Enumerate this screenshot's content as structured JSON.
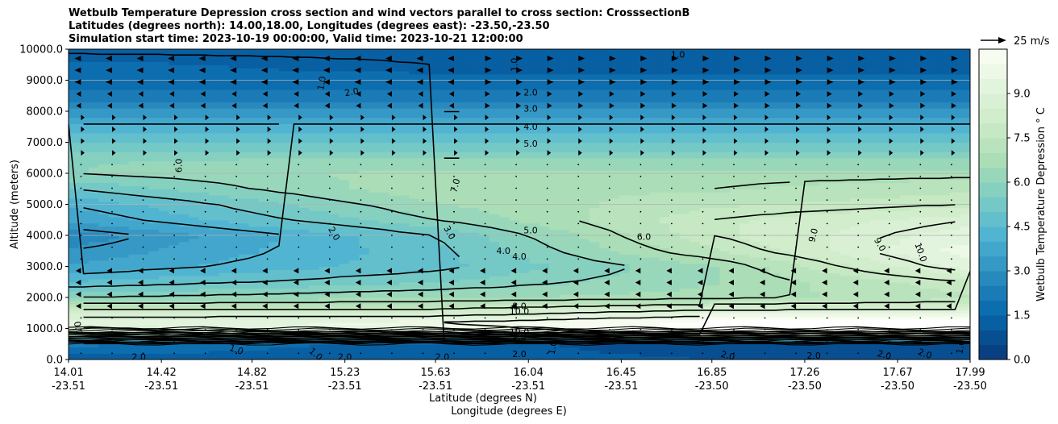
{
  "title_lines": [
    "Wetbulb Temperature Depression cross section and wind vectors parallel to cross section: CrosssectionB",
    "Latitudes (degrees north): 14.00,18.00, Longitudes (degrees east): -23.50,-23.50",
    "Simulation start time: 2023-10-19 00:00:00, Valid time: 2023-10-21 12:00:00"
  ],
  "chart_data": {
    "type": "heatmap",
    "subtype": "filled contour cross section with contour lines and wind vectors",
    "ylabel": "Altitude (meters)",
    "xlabel_line1": "Latitude (degrees N)",
    "xlabel_line2": "Longitude (degrees E)",
    "ylim": [
      0,
      10000
    ],
    "xlim": [
      14.01,
      17.99
    ],
    "y_ticks": [
      "0.0",
      "1000.0",
      "2000.0",
      "3000.0",
      "4000.0",
      "5000.0",
      "6000.0",
      "7000.0",
      "8000.0",
      "9000.0",
      "10000.0"
    ],
    "x_ticks": [
      {
        "lat": "14.01",
        "lon": "-23.51"
      },
      {
        "lat": "14.42",
        "lon": "-23.51"
      },
      {
        "lat": "14.82",
        "lon": "-23.51"
      },
      {
        "lat": "15.23",
        "lon": "-23.51"
      },
      {
        "lat": "15.63",
        "lon": "-23.51"
      },
      {
        "lat": "16.04",
        "lon": "-23.51"
      },
      {
        "lat": "16.45",
        "lon": "-23.51"
      },
      {
        "lat": "16.85",
        "lon": "-23.50"
      },
      {
        "lat": "17.26",
        "lon": "-23.50"
      },
      {
        "lat": "17.67",
        "lon": "-23.50"
      },
      {
        "lat": "17.99",
        "lon": "-23.50"
      }
    ],
    "horizontal_grid": [
      4000,
      5000,
      6000,
      9000
    ],
    "colorbar": {
      "label": "Wetbulb Temperature Depression ° C",
      "range": [
        0,
        10.5
      ],
      "ticks": [
        "0.0",
        "1.5",
        "3.0",
        "4.5",
        "6.0",
        "7.5",
        "9.0"
      ],
      "colormap": "GnBu_r"
    },
    "quiver_key": {
      "label": "25 m/s",
      "speed": 25
    },
    "field_profile": {
      "levels_m": [
        0,
        500,
        900,
        1200,
        1500,
        2000,
        2500,
        3000,
        3500,
        4000,
        4500,
        5000,
        5500,
        6000,
        6500,
        7000,
        7500,
        8000,
        8500,
        9000,
        9500,
        10000
      ],
      "lat_points": [
        14.01,
        15.63,
        16.85,
        17.99
      ],
      "depression_c": [
        [
          1.0,
          1.0,
          0.8,
          0.8
        ],
        [
          2.0,
          1.0,
          0.5,
          0.5
        ],
        [
          8.5,
          9.5,
          10.5,
          10.5
        ],
        [
          9.5,
          10.0,
          11.0,
          11.0
        ],
        [
          8.5,
          8.5,
          9.5,
          9.5
        ],
        [
          6.0,
          6.5,
          6.8,
          7.5
        ],
        [
          4.5,
          5.5,
          6.5,
          8.0
        ],
        [
          3.5,
          4.8,
          6.5,
          9.5
        ],
        [
          3.0,
          4.8,
          7.5,
          10.0
        ],
        [
          2.5,
          5.0,
          8.0,
          9.5
        ],
        [
          3.5,
          6.0,
          8.0,
          9.0
        ],
        [
          4.0,
          6.5,
          7.5,
          8.0
        ],
        [
          5.0,
          7.0,
          7.0,
          7.5
        ],
        [
          6.0,
          6.8,
          6.8,
          6.8
        ],
        [
          6.0,
          6.0,
          6.0,
          6.0
        ],
        [
          5.0,
          5.0,
          5.0,
          5.0
        ],
        [
          4.2,
          4.2,
          4.2,
          4.2
        ],
        [
          3.0,
          3.0,
          3.0,
          3.0
        ],
        [
          2.0,
          2.0,
          2.0,
          2.0
        ],
        [
          1.5,
          1.6,
          1.6,
          1.6
        ],
        [
          1.5,
          1.0,
          1.0,
          1.0
        ],
        [
          0.8,
          0.8,
          0.8,
          0.8
        ]
      ]
    },
    "contour_labels": [
      {
        "text": "1.0",
        "lat": 15.98,
        "alt": 9500,
        "angle": -90
      },
      {
        "text": "1.0",
        "lat": 16.7,
        "alt": 9800,
        "angle": 0
      },
      {
        "text": "1.0",
        "lat": 15.13,
        "alt": 8900,
        "angle": -80
      },
      {
        "text": "2.0",
        "lat": 15.26,
        "alt": 8600,
        "angle": -10
      },
      {
        "text": "2.0",
        "lat": 16.05,
        "alt": 8580,
        "angle": 0
      },
      {
        "text": "3.0",
        "lat": 16.05,
        "alt": 8060,
        "angle": 0
      },
      {
        "text": "4.0",
        "lat": 16.05,
        "alt": 7480,
        "angle": 0
      },
      {
        "text": "5.0",
        "lat": 16.05,
        "alt": 6940,
        "angle": 0
      },
      {
        "text": "6.0",
        "lat": 14.5,
        "alt": 6250,
        "angle": -90
      },
      {
        "text": "7.0",
        "lat": 15.72,
        "alt": 5600,
        "angle": -75
      },
      {
        "text": "2.0",
        "lat": 15.18,
        "alt": 4050,
        "angle": 60
      },
      {
        "text": "3.0",
        "lat": 15.69,
        "alt": 4080,
        "angle": 60
      },
      {
        "text": "5.0",
        "lat": 16.05,
        "alt": 4140,
        "angle": 0
      },
      {
        "text": "4.0",
        "lat": 15.93,
        "alt": 3480,
        "angle": 0
      },
      {
        "text": "4.0",
        "lat": 16.0,
        "alt": 3300,
        "angle": 0
      },
      {
        "text": "6.0",
        "lat": 16.55,
        "alt": 3940,
        "angle": 0
      },
      {
        "text": "9.0",
        "lat": 17.3,
        "alt": 4000,
        "angle": -75
      },
      {
        "text": "9.0",
        "lat": 17.59,
        "alt": 3700,
        "angle": 60
      },
      {
        "text": "10.0",
        "lat": 17.77,
        "alt": 3450,
        "angle": 70
      },
      {
        "text": "8.0",
        "lat": 16.0,
        "alt": 1700,
        "angle": 0
      },
      {
        "text": "10.0",
        "lat": 16.0,
        "alt": 1530,
        "angle": 0
      },
      {
        "text": "10.0",
        "lat": 16.0,
        "alt": 870,
        "angle": 0
      },
      {
        "text": "9.0",
        "lat": 16.0,
        "alt": 720,
        "angle": 0
      },
      {
        "text": "1.0",
        "lat": 16.15,
        "alt": 380,
        "angle": -80
      },
      {
        "text": "2.0",
        "lat": 16.0,
        "alt": 160,
        "angle": 0
      },
      {
        "text": "2.0",
        "lat": 15.66,
        "alt": 60,
        "angle": 0
      },
      {
        "text": "2.0",
        "lat": 15.23,
        "alt": 60,
        "angle": 0
      },
      {
        "text": "2.0",
        "lat": 14.32,
        "alt": 60,
        "angle": 0
      },
      {
        "text": "2.0",
        "lat": 16.92,
        "alt": 110,
        "angle": 15
      },
      {
        "text": "2.0",
        "lat": 17.3,
        "alt": 110,
        "angle": 0
      },
      {
        "text": "2.0",
        "lat": 17.61,
        "alt": 130,
        "angle": 15
      },
      {
        "text": "2.0",
        "lat": 17.79,
        "alt": 170,
        "angle": 20
      },
      {
        "text": "1.0",
        "lat": 17.95,
        "alt": 400,
        "angle": -80
      },
      {
        "text": "0.0",
        "lat": 14.05,
        "alt": 1000,
        "angle": 80
      },
      {
        "text": "1.0",
        "lat": 14.75,
        "alt": 300,
        "angle": 20
      },
      {
        "text": "1.0",
        "lat": 15.1,
        "alt": 160,
        "angle": 40
      }
    ]
  }
}
